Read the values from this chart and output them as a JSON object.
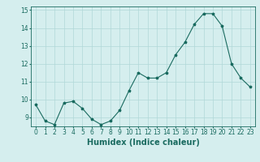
{
  "x": [
    0,
    1,
    2,
    3,
    4,
    5,
    6,
    7,
    8,
    9,
    10,
    11,
    12,
    13,
    14,
    15,
    16,
    17,
    18,
    19,
    20,
    21,
    22,
    23
  ],
  "y": [
    9.7,
    8.8,
    8.6,
    9.8,
    9.9,
    9.5,
    8.9,
    8.6,
    8.8,
    9.4,
    10.5,
    11.5,
    11.2,
    11.2,
    11.5,
    12.5,
    13.2,
    14.2,
    14.8,
    14.8,
    14.1,
    12.0,
    11.2,
    10.7
  ],
  "xlim": [
    -0.5,
    23.5
  ],
  "ylim": [
    8.5,
    15.2
  ],
  "yticks": [
    9,
    10,
    11,
    12,
    13,
    14,
    15
  ],
  "xticks": [
    0,
    1,
    2,
    3,
    4,
    5,
    6,
    7,
    8,
    9,
    10,
    11,
    12,
    13,
    14,
    15,
    16,
    17,
    18,
    19,
    20,
    21,
    22,
    23
  ],
  "xlabel": "Humidex (Indice chaleur)",
  "line_color": "#1a6b60",
  "marker": "*",
  "bg_color": "#d5eeee",
  "grid_color": "#b0d8d8",
  "text_color": "#1a6b60",
  "tick_fontsize": 5.5,
  "xlabel_fontsize": 7.0
}
